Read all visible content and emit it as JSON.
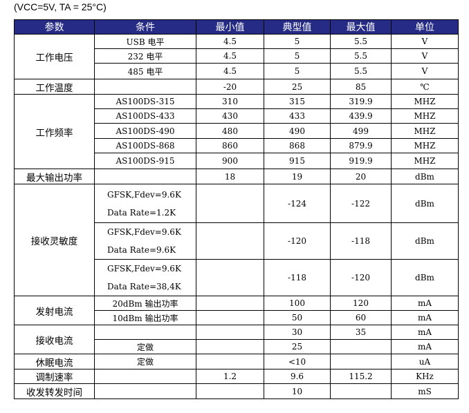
{
  "header": {
    "caption": "(VCC=5V, TA = 25°C)"
  },
  "table": {
    "columns": [
      "参数",
      "条件",
      "最小值",
      "典型值",
      "最大值",
      "单位"
    ],
    "groups": [
      {
        "parameter": "工作电压",
        "rows": [
          [
            "USB 电平",
            "4.5",
            "5",
            "5.5",
            "V"
          ],
          [
            "232 电平",
            "4.5",
            "5",
            "5.5",
            "V"
          ],
          [
            "485 电平",
            "4.5",
            "5",
            "5.5",
            "V"
          ]
        ]
      },
      {
        "parameter": "工作温度",
        "rows": [
          [
            null,
            "-20",
            "25",
            "85",
            "℃"
          ]
        ]
      },
      {
        "parameter": "工作频率",
        "rows": [
          [
            "AS100DS-315",
            "310",
            "315",
            "319.9",
            "MHZ"
          ],
          [
            "AS100DS-433",
            "430",
            "433",
            "439.9",
            "MHZ"
          ],
          [
            "AS100DS-490",
            "480",
            "490",
            "499",
            "MHZ"
          ],
          [
            "AS100DS-868",
            "860",
            "868",
            "879.9",
            "MHZ"
          ],
          [
            "AS100DS-915",
            "900",
            "915",
            "919.9",
            "MHZ"
          ]
        ]
      },
      {
        "parameter": "最大输出功率",
        "rows": [
          [
            null,
            "18",
            "19",
            "20",
            "dBm"
          ]
        ]
      },
      {
        "parameter": "接收灵敏度",
        "rows": [
          [
            [
              "GFSK,Fdev=9.6K",
              "Data Rate=1.2K"
            ],
            null,
            "-124",
            "-122",
            "dBm"
          ],
          [
            [
              "GFSK,Fdev=9.6K",
              "Data Rate=9.6K"
            ],
            null,
            "-120",
            "-118",
            "dBm"
          ],
          [
            [
              "GFSK,Fdev=9.6K",
              "Data Rate=38,4K"
            ],
            null,
            "-118",
            "-120",
            "dBm"
          ]
        ]
      },
      {
        "parameter": "发射电流",
        "rows": [
          [
            "20dBm 输出功率",
            null,
            "100",
            "120",
            "mA"
          ],
          [
            "10dBm 输出功率",
            null,
            "50",
            "60",
            "mA"
          ]
        ]
      },
      {
        "parameter": "接收电流",
        "rows": [
          [
            null,
            null,
            "30",
            "35",
            "mA"
          ],
          [
            "定做",
            null,
            "25",
            null,
            "mA"
          ]
        ]
      },
      {
        "parameter": "休眠电流",
        "rows": [
          [
            "定做",
            null,
            "<10",
            null,
            "uA"
          ]
        ]
      },
      {
        "parameter": "调制速率",
        "rows": [
          [
            null,
            "1.2",
            "9.6",
            "115.2",
            "KHz"
          ]
        ]
      },
      {
        "parameter": "收发转发时间",
        "rows": [
          [
            null,
            null,
            "10",
            null,
            "mS"
          ]
        ]
      }
    ]
  }
}
